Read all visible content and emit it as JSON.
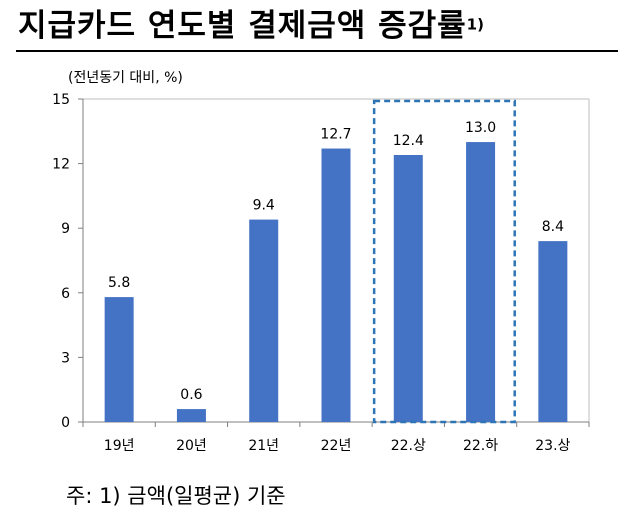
{
  "title": {
    "text": "지급카드 연도별 결제금액 증감률",
    "superscript": "1)"
  },
  "chart_data": {
    "type": "bar",
    "unit_label": "(전년동기 대비, %)",
    "categories": [
      "19년",
      "20년",
      "21년",
      "22년",
      "22.상",
      "22.하",
      "23.상"
    ],
    "values": [
      5.8,
      0.6,
      9.4,
      12.7,
      12.4,
      13.0,
      8.4
    ],
    "value_labels": [
      "5.8",
      "0.6",
      "9.4",
      "12.7",
      "12.4",
      "13.0",
      "8.4"
    ],
    "yticks": [
      0,
      3,
      6,
      9,
      12,
      15
    ],
    "ylim": [
      0,
      15
    ],
    "highlighted_categories": [
      "22.상",
      "22.하"
    ],
    "bar_color": "#4472C4",
    "highlight_border_color": "#2E75B6"
  },
  "footnote": "주: 1) 금액(일평균) 기준"
}
